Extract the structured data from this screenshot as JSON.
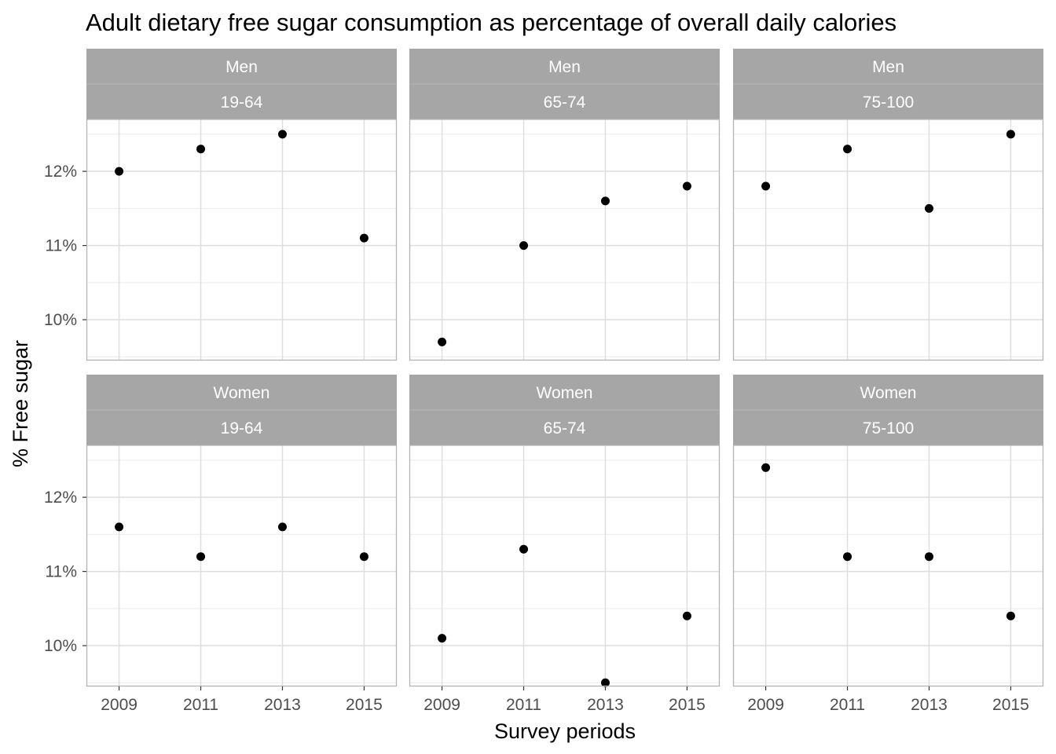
{
  "chart_data": {
    "type": "scatter",
    "title": "Adult dietary free sugar consumption as percentage of overall daily calories",
    "xlabel": "Survey periods",
    "ylabel": "% Free sugar",
    "x": [
      2009,
      2011,
      2013,
      2015
    ],
    "x_tick_labels": [
      "2009",
      "2011",
      "2013",
      "2015"
    ],
    "y_ticks": [
      10,
      11,
      12
    ],
    "y_tick_labels": [
      "10%",
      "11%",
      "12%"
    ],
    "ylim": [
      9.45,
      12.7
    ],
    "grid": true,
    "facets": [
      {
        "sex": "Men",
        "age": "19-64",
        "values": [
          12.0,
          12.3,
          12.5,
          11.1
        ]
      },
      {
        "sex": "Men",
        "age": "65-74",
        "values": [
          9.7,
          11.0,
          11.6,
          11.8
        ]
      },
      {
        "sex": "Men",
        "age": "75-100",
        "values": [
          11.8,
          12.3,
          11.5,
          12.5
        ]
      },
      {
        "sex": "Women",
        "age": "19-64",
        "values": [
          11.6,
          11.2,
          11.6,
          11.2
        ]
      },
      {
        "sex": "Women",
        "age": "65-74",
        "values": [
          10.1,
          11.3,
          9.5,
          10.4
        ]
      },
      {
        "sex": "Women",
        "age": "75-100",
        "values": [
          12.4,
          11.2,
          11.2,
          10.4
        ]
      }
    ],
    "colors": {
      "point": "#000000",
      "strip": "#a6a6a6",
      "grid": "#dedede",
      "panel_border": "#b3b3b3",
      "tick_text": "#4d4d4d"
    }
  }
}
